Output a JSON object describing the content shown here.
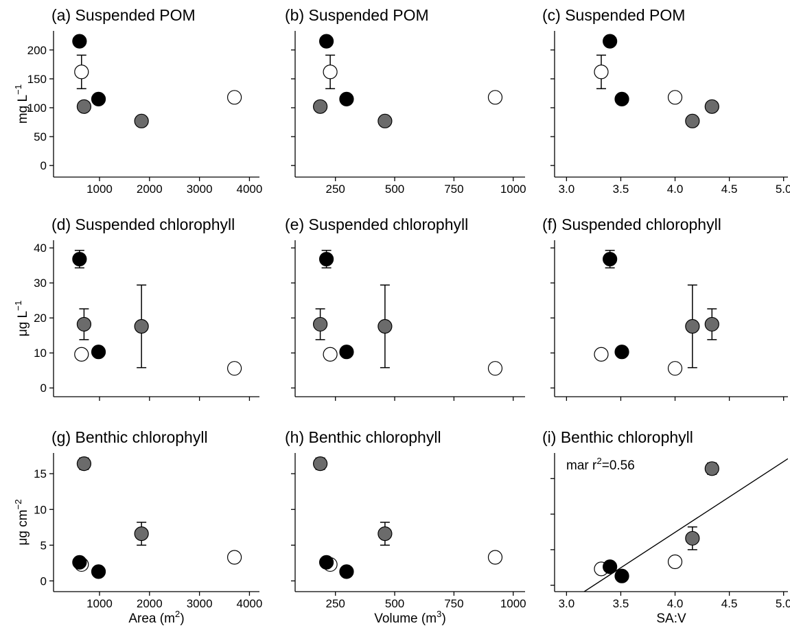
{
  "chart_data": [
    {
      "type": "scatter",
      "title": "(a) Suspended POM",
      "ylabel": [
        {
          "text": "mg L"
        },
        {
          "text": "−1",
          "sup": true
        }
      ],
      "xlim": [
        80,
        4200
      ],
      "xticks": [
        1000,
        2000,
        3000,
        4000
      ],
      "ylim": [
        -20,
        233
      ],
      "yticks": [
        0,
        50,
        100,
        150,
        200
      ],
      "show_xtick_labels": true,
      "show_ytick_labels": true,
      "series": [
        {
          "color": "#ffffff",
          "x": [
            640,
            3700
          ],
          "values": [
            162,
            118
          ],
          "errors": [
            29,
            null
          ]
        },
        {
          "color": "#6b6b6b",
          "x": [
            690,
            1840
          ],
          "values": [
            102,
            77
          ]
        },
        {
          "color": "#000000",
          "x": [
            600,
            980
          ],
          "values": [
            215,
            115
          ]
        }
      ]
    },
    {
      "type": "scatter",
      "title": "(b) Suspended POM",
      "xlim": [
        80,
        1050
      ],
      "xticks": [
        250,
        500,
        750,
        1000
      ],
      "ylim": [
        -20,
        233
      ],
      "yticks": [
        0,
        50,
        100,
        150,
        200
      ],
      "show_xtick_labels": true,
      "show_ytick_labels": false,
      "series": [
        {
          "color": "#ffffff",
          "x": [
            228,
            924
          ],
          "values": [
            162,
            118
          ],
          "errors": [
            29,
            null
          ]
        },
        {
          "color": "#6b6b6b",
          "x": [
            186,
            459
          ],
          "values": [
            102,
            77
          ]
        },
        {
          "color": "#000000",
          "x": [
            212,
            297
          ],
          "values": [
            215,
            115
          ]
        }
      ]
    },
    {
      "type": "scatter",
      "title": "(c) Suspended POM",
      "xlim": [
        2.89,
        5.04
      ],
      "xticks": [
        {
          "value": 3,
          "label": "3.0"
        },
        3.5,
        {
          "value": 4,
          "label": "4.0"
        },
        4.5,
        {
          "value": 5,
          "label": "5.0"
        }
      ],
      "ylim": [
        -20,
        233
      ],
      "yticks": [
        0,
        50,
        100,
        150,
        200
      ],
      "show_xtick_labels": true,
      "show_ytick_labels": false,
      "series": [
        {
          "color": "#ffffff",
          "x": [
            3.32,
            4.0
          ],
          "values": [
            162,
            118
          ],
          "errors": [
            29,
            null
          ]
        },
        {
          "color": "#6b6b6b",
          "x": [
            4.34,
            4.16
          ],
          "values": [
            102,
            77
          ]
        },
        {
          "color": "#000000",
          "x": [
            3.4,
            3.51
          ],
          "values": [
            215,
            115
          ]
        }
      ]
    },
    {
      "type": "scatter",
      "title": "(d)  Suspended chlorophyll",
      "ylabel": [
        {
          "text": "μg L"
        },
        {
          "text": "−1",
          "sup": true
        }
      ],
      "xlim": [
        80,
        4200
      ],
      "xticks": [
        1000,
        2000,
        3000,
        4000
      ],
      "ylim": [
        -2.5,
        42.2
      ],
      "yticks": [
        0,
        10,
        20,
        30,
        40
      ],
      "show_xtick_labels": false,
      "show_ytick_labels": true,
      "series": [
        {
          "color": "#ffffff",
          "x": [
            640,
            3700
          ],
          "values": [
            9.6,
            5.6
          ]
        },
        {
          "color": "#6b6b6b",
          "x": [
            690,
            1840
          ],
          "values": [
            18.2,
            17.6
          ],
          "errors": [
            4.4,
            11.8
          ]
        },
        {
          "color": "#000000",
          "x": [
            600,
            980
          ],
          "values": [
            36.8,
            10.3
          ],
          "errors": [
            2.5,
            null
          ]
        }
      ]
    },
    {
      "type": "scatter",
      "title": "(e)  Suspended chlorophyll",
      "xlim": [
        80,
        1050
      ],
      "xticks": [
        250,
        500,
        750,
        1000
      ],
      "ylim": [
        -2.5,
        42.2
      ],
      "yticks": [
        0,
        10,
        20,
        30,
        40
      ],
      "show_xtick_labels": false,
      "show_ytick_labels": false,
      "series": [
        {
          "color": "#ffffff",
          "x": [
            228,
            924
          ],
          "values": [
            9.6,
            5.6
          ]
        },
        {
          "color": "#6b6b6b",
          "x": [
            186,
            459
          ],
          "values": [
            18.2,
            17.6
          ],
          "errors": [
            4.4,
            11.8
          ]
        },
        {
          "color": "#000000",
          "x": [
            212,
            297
          ],
          "values": [
            36.8,
            10.3
          ],
          "errors": [
            2.5,
            null
          ]
        }
      ]
    },
    {
      "type": "scatter",
      "title": "(f)  Suspended chlorophyll",
      "xlim": [
        2.89,
        5.04
      ],
      "xticks": [
        3,
        3.5,
        4,
        4.5,
        5
      ],
      "ylim": [
        -2.5,
        42.2
      ],
      "yticks": [
        0,
        10,
        20,
        30,
        40
      ],
      "show_xtick_labels": false,
      "show_ytick_labels": false,
      "series": [
        {
          "color": "#ffffff",
          "x": [
            3.32,
            4.0
          ],
          "values": [
            9.6,
            5.6
          ]
        },
        {
          "color": "#6b6b6b",
          "x": [
            4.34,
            4.16
          ],
          "values": [
            18.2,
            17.6
          ],
          "errors": [
            4.4,
            11.8
          ]
        },
        {
          "color": "#000000",
          "x": [
            3.4,
            3.51
          ],
          "values": [
            36.8,
            10.3
          ],
          "errors": [
            2.5,
            null
          ]
        }
      ]
    },
    {
      "type": "scatter",
      "title": "(g) Benthic chlorophyll",
      "ylabel": [
        {
          "text": "μg cm"
        },
        {
          "text": "−2",
          "sup": true
        }
      ],
      "xlabel": [
        {
          "text": "Area (m"
        },
        {
          "text": "2",
          "sup": true
        },
        {
          "text": ")"
        }
      ],
      "xlim": [
        80,
        4200
      ],
      "xticks": [
        1000,
        2000,
        3000,
        4000
      ],
      "ylim": [
        -1.5,
        17.9
      ],
      "yticks": [
        0,
        5,
        10,
        15
      ],
      "show_xtick_labels": true,
      "show_ytick_labels": true,
      "series": [
        {
          "color": "#ffffff",
          "x": [
            640,
            3700
          ],
          "values": [
            2.3,
            3.3
          ]
        },
        {
          "color": "#6b6b6b",
          "x": [
            690,
            1840
          ],
          "values": [
            16.4,
            6.6
          ],
          "errors": [
            0.8,
            1.6
          ]
        },
        {
          "color": "#000000",
          "x": [
            600,
            980
          ],
          "values": [
            2.6,
            1.3
          ]
        }
      ]
    },
    {
      "type": "scatter",
      "title": "(h) Benthic chlorophyll",
      "xlabel": [
        {
          "text": "Volume (m"
        },
        {
          "text": "3",
          "sup": true
        },
        {
          "text": ")"
        }
      ],
      "xlim": [
        80,
        1050
      ],
      "xticks": [
        250,
        500,
        750,
        1000
      ],
      "ylim": [
        -1.5,
        17.9
      ],
      "yticks": [
        0,
        5,
        10,
        15
      ],
      "show_xtick_labels": true,
      "show_ytick_labels": false,
      "series": [
        {
          "color": "#ffffff",
          "x": [
            228,
            924
          ],
          "values": [
            2.3,
            3.3
          ]
        },
        {
          "color": "#6b6b6b",
          "x": [
            186,
            459
          ],
          "values": [
            16.4,
            6.6
          ],
          "errors": [
            0.8,
            1.6
          ]
        },
        {
          "color": "#000000",
          "x": [
            212,
            297
          ],
          "values": [
            2.6,
            1.3
          ]
        }
      ]
    },
    {
      "type": "scatter",
      "title": "(i) Benthic chlorophyll",
      "xlabel": [
        {
          "text": "SA:V"
        }
      ],
      "annotation": [
        {
          "text": "mar r"
        },
        {
          "text": "2",
          "sup": true
        },
        {
          "text": "=0.56"
        }
      ],
      "xlim": [
        2.89,
        5.04
      ],
      "xticks": [
        {
          "value": 3,
          "label": "3.0"
        },
        3.5,
        {
          "value": 4,
          "label": "4.0"
        },
        4.5,
        {
          "value": 5,
          "label": "5.0"
        }
      ],
      "ylim": [
        -0.9,
        18.6
      ],
      "yticks": [
        0,
        5,
        10,
        15
      ],
      "show_xtick_labels": true,
      "show_ytick_labels": false,
      "fit": {
        "slope": 9.96,
        "intercept": -32.4
      },
      "series": [
        {
          "color": "#ffffff",
          "x": [
            3.32,
            4.0
          ],
          "values": [
            2.3,
            3.3
          ]
        },
        {
          "color": "#6b6b6b",
          "x": [
            4.34,
            4.16
          ],
          "values": [
            16.4,
            6.6
          ],
          "errors": [
            0.8,
            1.6
          ]
        },
        {
          "color": "#000000",
          "x": [
            3.4,
            3.51
          ],
          "values": [
            2.6,
            1.3
          ]
        }
      ]
    }
  ]
}
